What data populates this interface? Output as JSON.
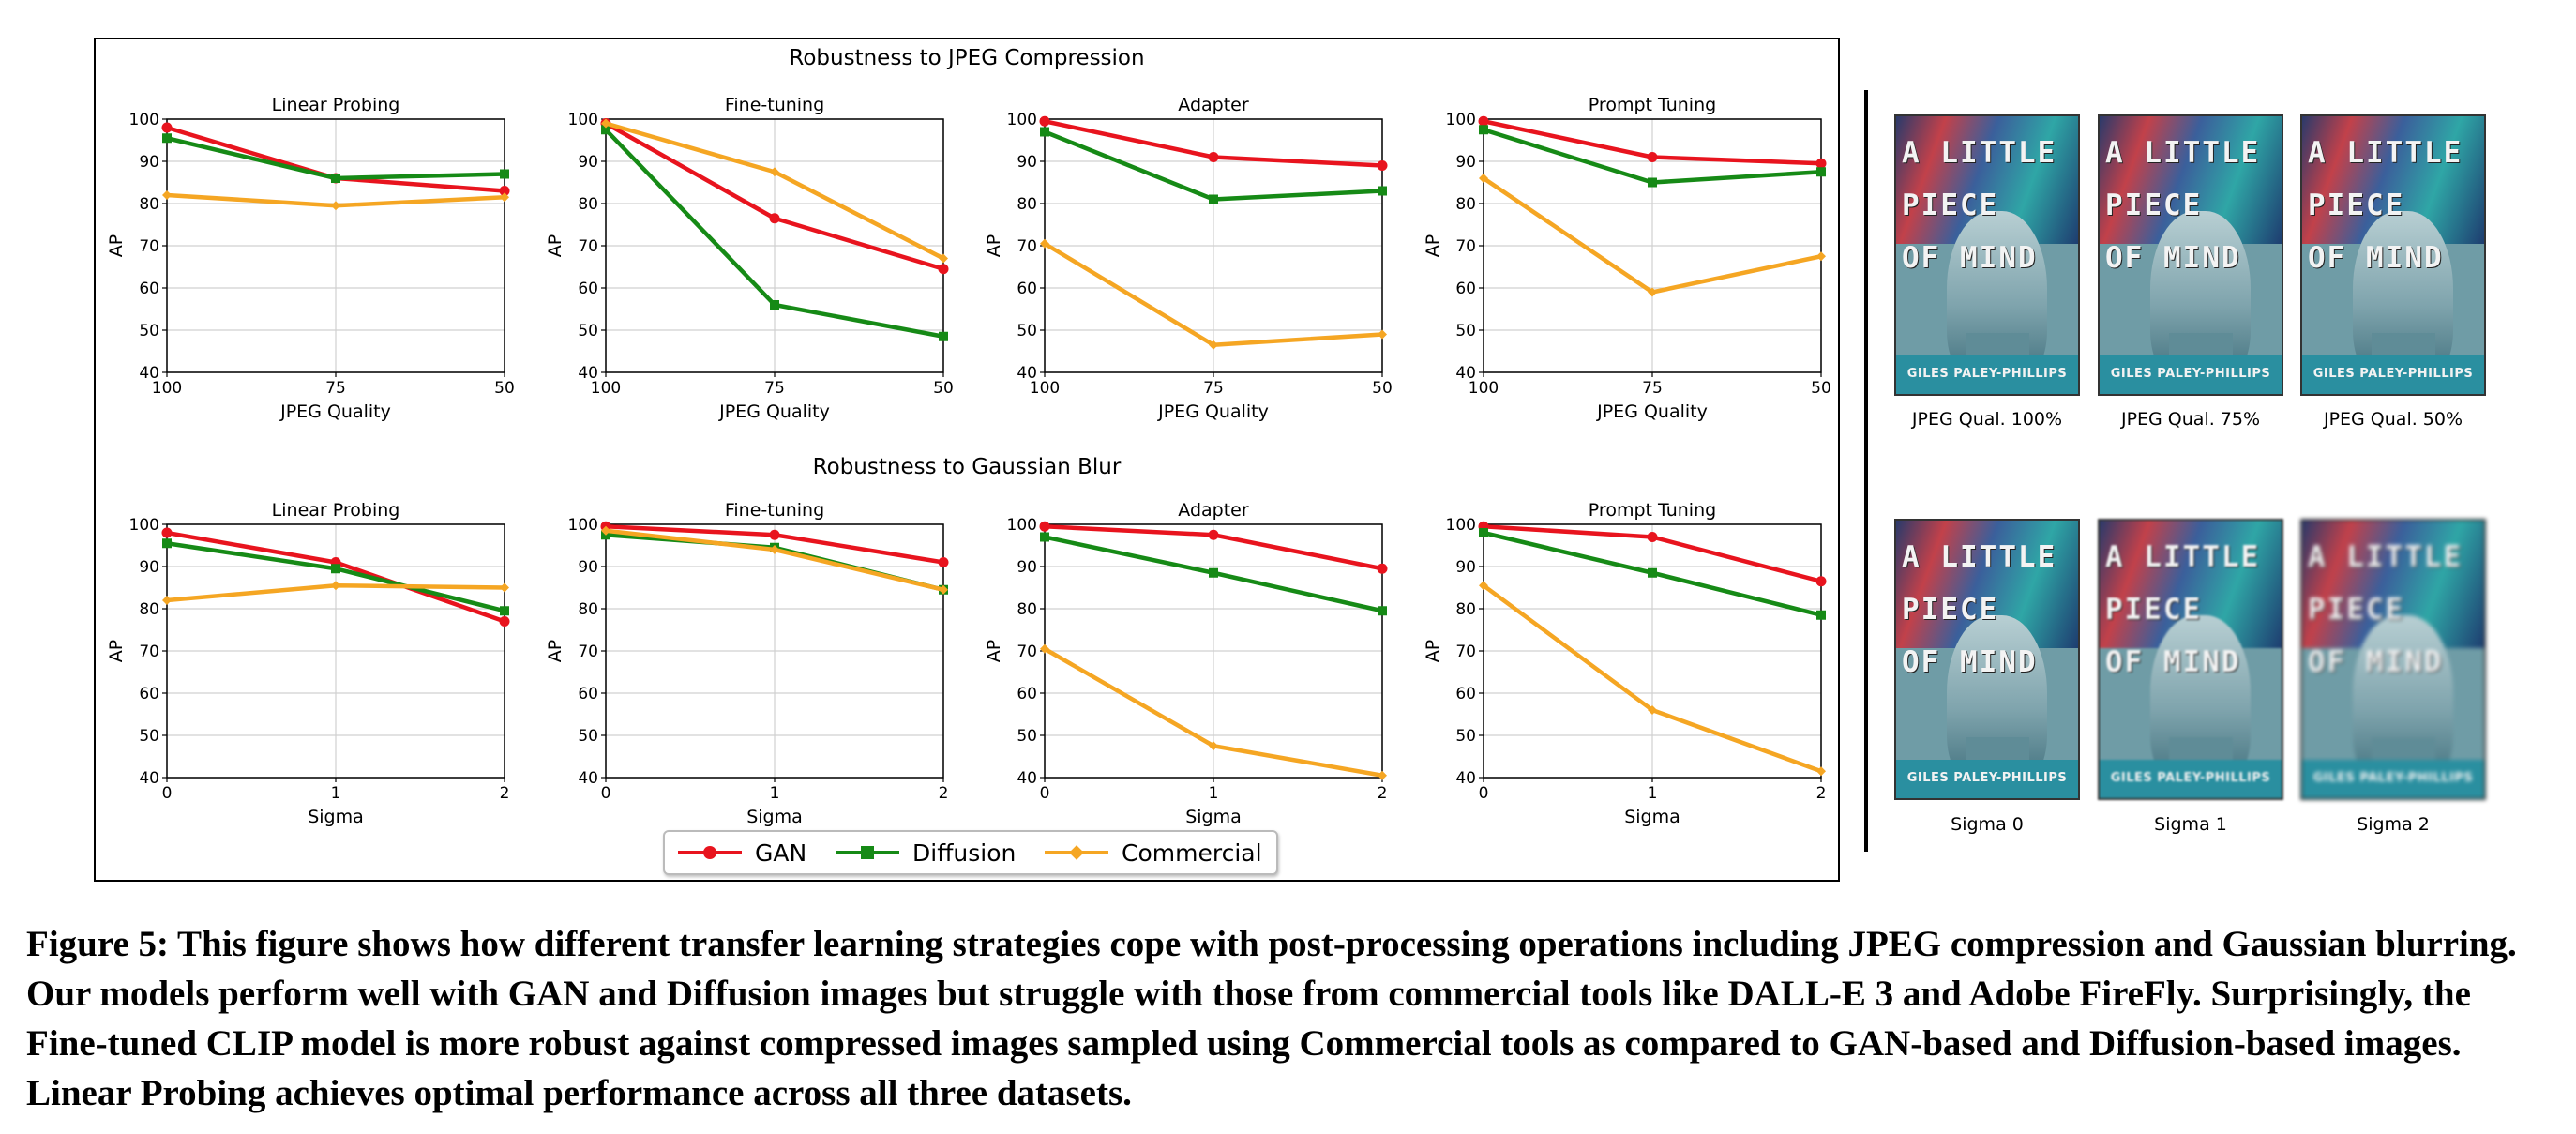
{
  "figure": {
    "row_titles": [
      "Robustness to JPEG Compression",
      "Robustness to Gaussian Blur"
    ],
    "legend": [
      {
        "name": "GAN",
        "color": "#e8141e",
        "marker": "circle"
      },
      {
        "name": "Diffusion",
        "color": "#168a16",
        "marker": "square"
      },
      {
        "name": "Commercial",
        "color": "#f5a623",
        "marker": "diamond"
      }
    ]
  },
  "chart_data": [
    {
      "type": "line",
      "title": "Linear Probing",
      "xlabel": "JPEG Quality",
      "ylabel": "AP",
      "x": [
        "100",
        "75",
        "50"
      ],
      "ylim": [
        40,
        100
      ],
      "yticks": [
        40,
        50,
        60,
        70,
        80,
        90,
        100
      ],
      "grid": true,
      "series": [
        {
          "name": "GAN",
          "values": [
            98,
            86,
            83
          ]
        },
        {
          "name": "Diffusion",
          "values": [
            95.5,
            86,
            87
          ]
        },
        {
          "name": "Commercial",
          "values": [
            82,
            79.5,
            81.5
          ]
        }
      ]
    },
    {
      "type": "line",
      "title": "Fine-tuning",
      "xlabel": "JPEG Quality",
      "ylabel": "AP",
      "x": [
        "100",
        "75",
        "50"
      ],
      "ylim": [
        40,
        100
      ],
      "yticks": [
        40,
        50,
        60,
        70,
        80,
        90,
        100
      ],
      "grid": true,
      "series": [
        {
          "name": "GAN",
          "values": [
            99,
            76.5,
            64.5
          ]
        },
        {
          "name": "Diffusion",
          "values": [
            97.5,
            56,
            48.5
          ]
        },
        {
          "name": "Commercial",
          "values": [
            99,
            87.5,
            67
          ]
        }
      ]
    },
    {
      "type": "line",
      "title": "Adapter",
      "xlabel": "JPEG Quality",
      "ylabel": "AP",
      "x": [
        "100",
        "75",
        "50"
      ],
      "ylim": [
        40,
        100
      ],
      "yticks": [
        40,
        50,
        60,
        70,
        80,
        90,
        100
      ],
      "grid": true,
      "series": [
        {
          "name": "GAN",
          "values": [
            99.5,
            91,
            89
          ]
        },
        {
          "name": "Diffusion",
          "values": [
            97,
            81,
            83
          ]
        },
        {
          "name": "Commercial",
          "values": [
            70.5,
            46.5,
            49
          ]
        }
      ]
    },
    {
      "type": "line",
      "title": "Prompt Tuning",
      "xlabel": "JPEG Quality",
      "ylabel": "AP",
      "x": [
        "100",
        "75",
        "50"
      ],
      "ylim": [
        40,
        100
      ],
      "yticks": [
        40,
        50,
        60,
        70,
        80,
        90,
        100
      ],
      "grid": true,
      "series": [
        {
          "name": "GAN",
          "values": [
            99.5,
            91,
            89.5
          ]
        },
        {
          "name": "Diffusion",
          "values": [
            97.5,
            85,
            87.5
          ]
        },
        {
          "name": "Commercial",
          "values": [
            86,
            59,
            67.5
          ]
        }
      ]
    },
    {
      "type": "line",
      "title": "Linear Probing",
      "xlabel": "Sigma",
      "ylabel": "AP",
      "x": [
        "0",
        "1",
        "2"
      ],
      "ylim": [
        40,
        100
      ],
      "yticks": [
        40,
        50,
        60,
        70,
        80,
        90,
        100
      ],
      "grid": true,
      "series": [
        {
          "name": "GAN",
          "values": [
            98,
            91,
            77
          ]
        },
        {
          "name": "Diffusion",
          "values": [
            95.5,
            89.5,
            79.5
          ]
        },
        {
          "name": "Commercial",
          "values": [
            82,
            85.5,
            85
          ]
        }
      ]
    },
    {
      "type": "line",
      "title": "Fine-tuning",
      "xlabel": "Sigma",
      "ylabel": "AP",
      "x": [
        "0",
        "1",
        "2"
      ],
      "ylim": [
        40,
        100
      ],
      "yticks": [
        40,
        50,
        60,
        70,
        80,
        90,
        100
      ],
      "grid": true,
      "series": [
        {
          "name": "GAN",
          "values": [
            99.5,
            97.5,
            91
          ]
        },
        {
          "name": "Diffusion",
          "values": [
            97.5,
            94.5,
            84.5
          ]
        },
        {
          "name": "Commercial",
          "values": [
            98.5,
            94,
            84.5
          ]
        }
      ]
    },
    {
      "type": "line",
      "title": "Adapter",
      "xlabel": "Sigma",
      "ylabel": "AP",
      "x": [
        "0",
        "1",
        "2"
      ],
      "ylim": [
        40,
        100
      ],
      "yticks": [
        40,
        50,
        60,
        70,
        80,
        90,
        100
      ],
      "grid": true,
      "series": [
        {
          "name": "GAN",
          "values": [
            99.5,
            97.5,
            89.5
          ]
        },
        {
          "name": "Diffusion",
          "values": [
            97,
            88.5,
            79.5
          ]
        },
        {
          "name": "Commercial",
          "values": [
            70.5,
            47.5,
            40.5
          ]
        }
      ]
    },
    {
      "type": "line",
      "title": "Prompt Tuning",
      "xlabel": "Sigma",
      "ylabel": "AP",
      "x": [
        "0",
        "1",
        "2"
      ],
      "ylim": [
        40,
        100
      ],
      "yticks": [
        40,
        50,
        60,
        70,
        80,
        90,
        100
      ],
      "grid": true,
      "series": [
        {
          "name": "GAN",
          "values": [
            99.5,
            97,
            86.5
          ]
        },
        {
          "name": "Diffusion",
          "values": [
            98,
            88.5,
            78.5
          ]
        },
        {
          "name": "Commercial",
          "values": [
            85.5,
            56,
            41.5
          ]
        }
      ]
    }
  ],
  "thumbnails": {
    "cover_title_lines": [
      "A LITTLE",
      "PIECE",
      "OF MIND"
    ],
    "cover_author": "GILES PALEY-PHILLIPS",
    "jpeg": [
      "JPEG Qual. 100%",
      "JPEG Qual. 75%",
      "JPEG Qual. 50%"
    ],
    "blur": [
      "Sigma 0",
      "Sigma 1",
      "Sigma 2"
    ]
  },
  "caption": "Figure 5: This figure shows how different transfer learning strategies cope with post-processing operations including JPEG compression and Gaussian blurring. Our models perform well with GAN and Diffusion images but struggle with those from commercial tools like DALL-E 3 and Adobe FireFly. Surprisingly, the Fine-tuned CLIP model is more robust against compressed images sampled using Commercial tools as compared to GAN-based and Diffusion-based images. Linear Probing achieves optimal performance across all three datasets."
}
